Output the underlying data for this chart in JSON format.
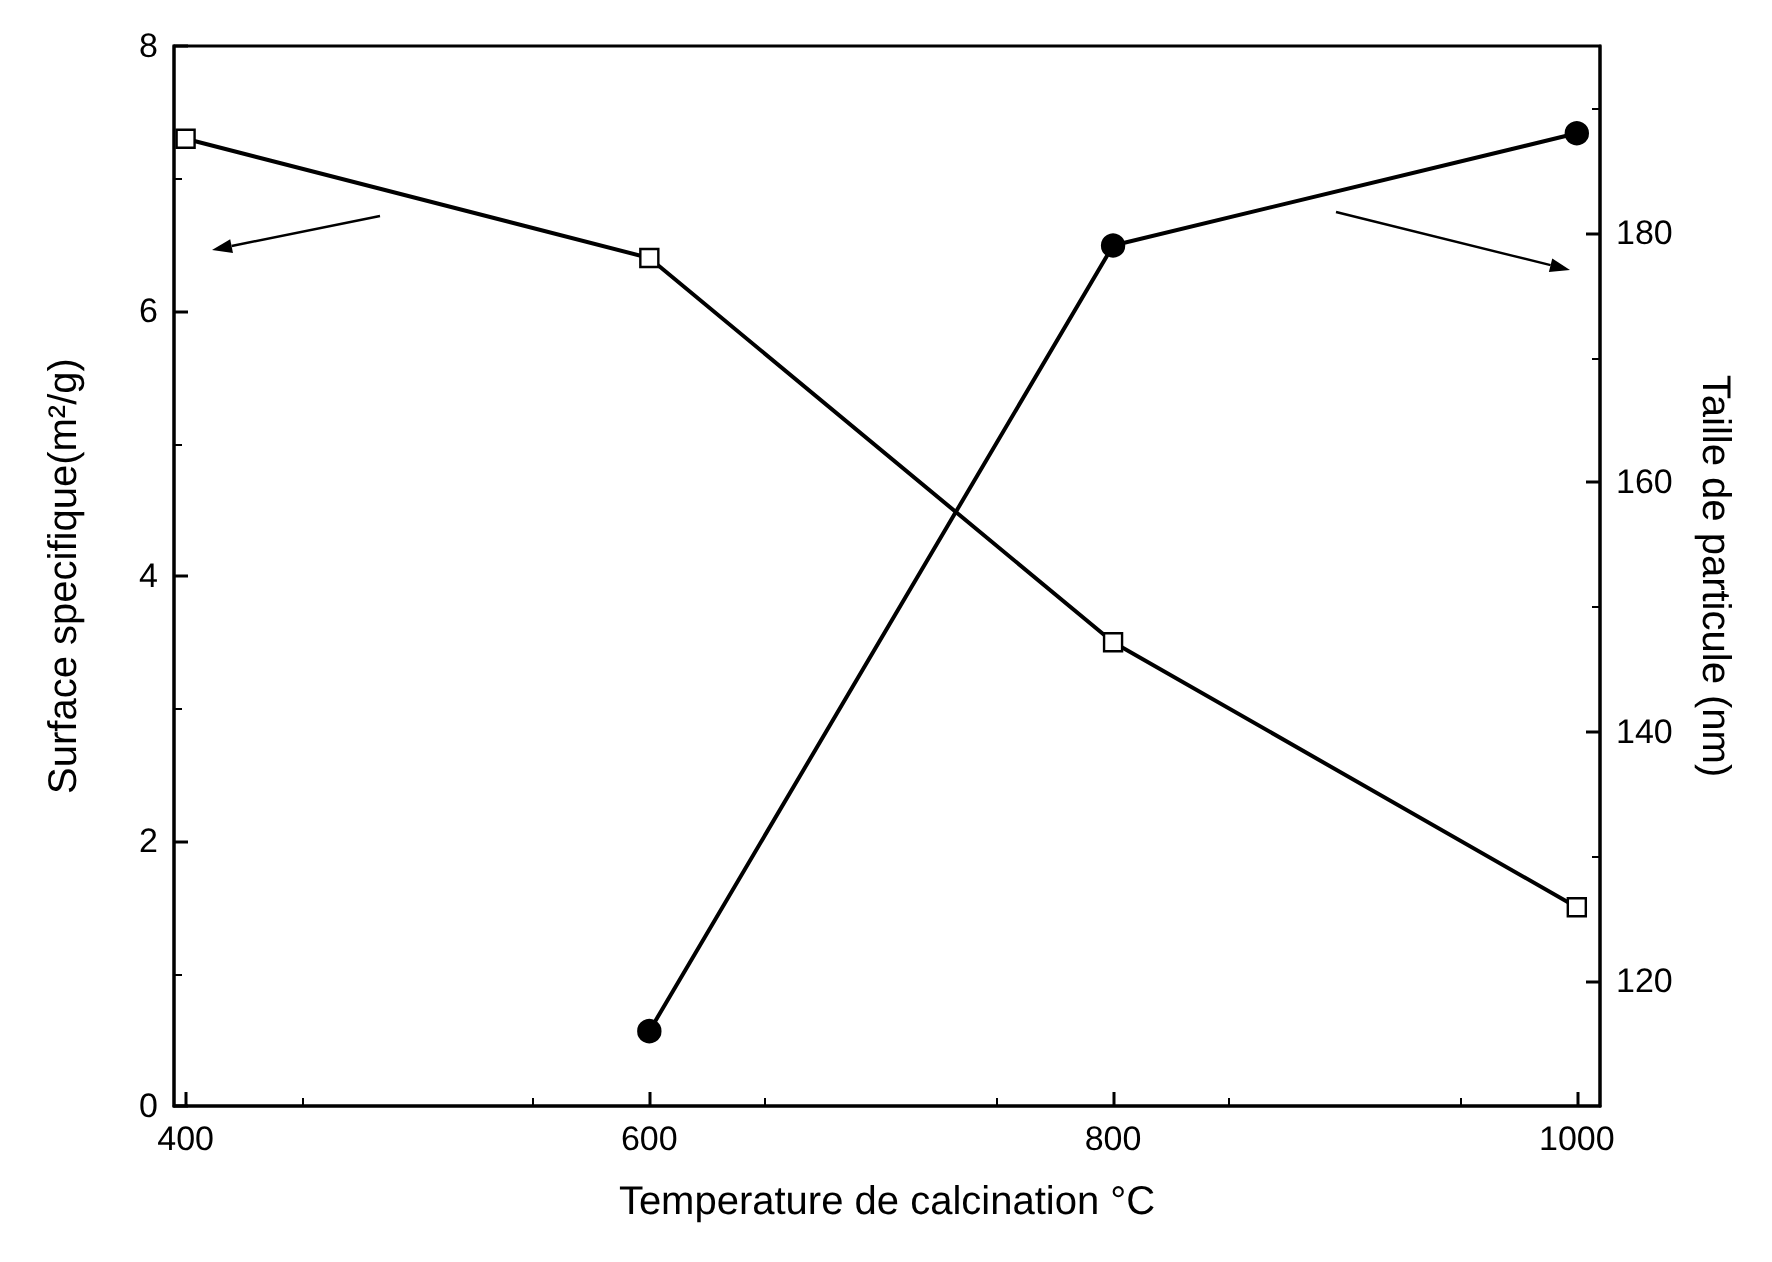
{
  "chart_data": {
    "type": "line",
    "xlabel": "Temperature de calcination °C",
    "ylabel": "Surface specifique(m²/g)",
    "y2label": "Taille de particule (nm)",
    "x": [
      400,
      600,
      800,
      1000
    ],
    "series": [
      {
        "color": "#000000",
        "marker": "square",
        "values": [
          7.3,
          6.4,
          3.5,
          1.5
        ]
      },
      {
        "color": "#000000",
        "marker": "circle",
        "axis": "y2",
        "x": [
          600,
          800,
          1000
        ],
        "values": [
          116,
          179,
          188
        ]
      }
    ],
    "xlim": [
      395,
      1010
    ],
    "xticks": [
      400,
      600,
      800,
      1000
    ],
    "ylim": [
      0,
      8
    ],
    "yticks": [
      0,
      2,
      4,
      6,
      8
    ],
    "y2lim": [
      110,
      195
    ],
    "y2ticks": [
      120,
      140,
      160,
      180
    ],
    "grid": false,
    "line_style": "solid"
  }
}
